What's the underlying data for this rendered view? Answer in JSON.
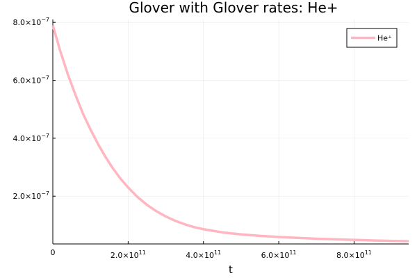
{
  "chart_data": {
    "type": "line",
    "title": "Glover with Glover rates: He+",
    "xlabel": "t",
    "ylabel": "",
    "xlim": [
      0,
      945000000000.0
    ],
    "ylim": [
      3.5e-08,
      8.1e-07
    ],
    "x_ticks": [
      {
        "value": 0,
        "mantissa": "0",
        "exponent": ""
      },
      {
        "value": 200000000000.0,
        "mantissa": "2.0×10",
        "exponent": "11"
      },
      {
        "value": 400000000000.0,
        "mantissa": "4.0×10",
        "exponent": "11"
      },
      {
        "value": 600000000000.0,
        "mantissa": "6.0×10",
        "exponent": "11"
      },
      {
        "value": 800000000000.0,
        "mantissa": "8.0×10",
        "exponent": "11"
      }
    ],
    "y_ticks": [
      {
        "value": 2e-07,
        "mantissa": "2.0×10",
        "exponent": "−7"
      },
      {
        "value": 4e-07,
        "mantissa": "4.0×10",
        "exponent": "−7"
      },
      {
        "value": 6e-07,
        "mantissa": "6.0×10",
        "exponent": "−7"
      },
      {
        "value": 8e-07,
        "mantissa": "8.0×10",
        "exponent": "−7"
      }
    ],
    "grid": true,
    "legend_position": "top-right",
    "series": [
      {
        "name": "He⁺",
        "color": "#ffb6c1",
        "x": [
          0,
          20000000000.0,
          40000000000.0,
          60000000000.0,
          80000000000.0,
          100000000000.0,
          120000000000.0,
          140000000000.0,
          160000000000.0,
          180000000000.0,
          200000000000.0,
          225000000000.0,
          250000000000.0,
          275000000000.0,
          300000000000.0,
          325000000000.0,
          350000000000.0,
          375000000000.0,
          400000000000.0,
          450000000000.0,
          500000000000.0,
          550000000000.0,
          600000000000.0,
          650000000000.0,
          700000000000.0,
          750000000000.0,
          800000000000.0,
          850000000000.0,
          900000000000.0,
          945000000000.0
        ],
        "y": [
          7.9e-07,
          7e-07,
          6.2e-07,
          5.5e-07,
          4.85e-07,
          4.3e-07,
          3.8e-07,
          3.35e-07,
          2.95e-07,
          2.6e-07,
          2.3e-07,
          1.97e-07,
          1.7e-07,
          1.48e-07,
          1.3e-07,
          1.15e-07,
          1.03e-07,
          9.3e-08,
          8.6e-08,
          7.5e-08,
          6.8e-08,
          6.3e-08,
          5.9e-08,
          5.6e-08,
          5.3e-08,
          5.1e-08,
          4.9e-08,
          4.7e-08,
          4.55e-08,
          4.45e-08
        ]
      }
    ]
  }
}
